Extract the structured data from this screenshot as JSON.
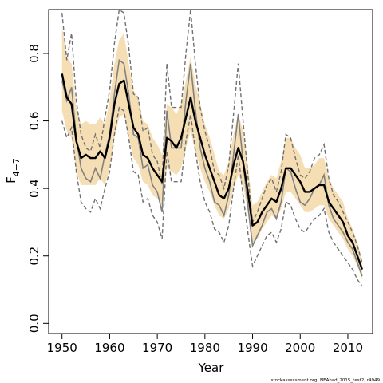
{
  "chart_data": {
    "type": "line",
    "xlabel": "Year",
    "ylabel": "F̄ 4−7",
    "ylabel_main": "F",
    "ylabel_sub": "4−7",
    "footer": "stockassessment.org, NEAhad_2015_test2, r4949",
    "xlim": [
      1947.2,
      2015.2
    ],
    "ylim": [
      -0.03,
      0.93
    ],
    "x_ticks": [
      1950,
      1960,
      1970,
      1980,
      1990,
      2000,
      2010
    ],
    "x_tick_labels": [
      "1950",
      "1960",
      "1970",
      "1980",
      "1990",
      "2000",
      "2010"
    ],
    "y_ticks": [
      0.0,
      0.2,
      0.4,
      0.6,
      0.8
    ],
    "y_tick_labels": [
      "0.0",
      "0.2",
      "0.4",
      "0.6",
      "0.8"
    ],
    "colors": {
      "band": "#f5deb3",
      "estimate": "#000000",
      "previous": "#808080",
      "previous_ci": "#707070"
    },
    "x": [
      1950,
      1951,
      1952,
      1953,
      1954,
      1955,
      1956,
      1957,
      1958,
      1959,
      1960,
      1961,
      1962,
      1963,
      1964,
      1965,
      1966,
      1967,
      1968,
      1969,
      1970,
      1971,
      1972,
      1973,
      1974,
      1975,
      1976,
      1977,
      1978,
      1979,
      1980,
      1981,
      1982,
      1983,
      1984,
      1985,
      1986,
      1987,
      1988,
      1989,
      1990,
      1991,
      1992,
      1993,
      1994,
      1995,
      1996,
      1997,
      1998,
      1999,
      2000,
      2001,
      2002,
      2003,
      2004,
      2005,
      2006,
      2007,
      2008,
      2009,
      2010,
      2011,
      2012,
      2013
    ],
    "series": [
      {
        "role": "estimate",
        "values": [
          0.74,
          0.67,
          0.65,
          0.54,
          0.49,
          0.5,
          0.49,
          0.49,
          0.51,
          0.49,
          0.55,
          0.65,
          0.71,
          0.72,
          0.65,
          0.58,
          0.56,
          0.5,
          0.49,
          0.46,
          0.44,
          0.42,
          0.55,
          0.54,
          0.52,
          0.55,
          0.61,
          0.67,
          0.6,
          0.55,
          0.5,
          0.46,
          0.42,
          0.38,
          0.37,
          0.4,
          0.47,
          0.52,
          0.48,
          0.39,
          0.29,
          0.3,
          0.33,
          0.35,
          0.37,
          0.36,
          0.4,
          0.46,
          0.46,
          0.44,
          0.42,
          0.39,
          0.39,
          0.4,
          0.41,
          0.41,
          0.36,
          0.34,
          0.32,
          0.3,
          0.26,
          0.24,
          0.2,
          0.16
        ],
        "lower": [
          0.63,
          0.57,
          0.55,
          0.45,
          0.41,
          0.41,
          0.41,
          0.41,
          0.43,
          0.41,
          0.46,
          0.55,
          0.61,
          0.62,
          0.55,
          0.49,
          0.47,
          0.42,
          0.41,
          0.38,
          0.37,
          0.35,
          0.46,
          0.45,
          0.44,
          0.46,
          0.52,
          0.57,
          0.51,
          0.46,
          0.42,
          0.39,
          0.35,
          0.32,
          0.31,
          0.34,
          0.4,
          0.44,
          0.41,
          0.33,
          0.24,
          0.25,
          0.28,
          0.3,
          0.32,
          0.31,
          0.34,
          0.39,
          0.39,
          0.37,
          0.35,
          0.33,
          0.33,
          0.34,
          0.35,
          0.35,
          0.31,
          0.29,
          0.27,
          0.25,
          0.22,
          0.2,
          0.17,
          0.13
        ],
        "upper": [
          0.88,
          0.79,
          0.77,
          0.64,
          0.59,
          0.6,
          0.59,
          0.59,
          0.61,
          0.59,
          0.66,
          0.77,
          0.84,
          0.86,
          0.77,
          0.69,
          0.67,
          0.6,
          0.59,
          0.55,
          0.53,
          0.5,
          0.65,
          0.64,
          0.62,
          0.65,
          0.72,
          0.79,
          0.71,
          0.65,
          0.59,
          0.55,
          0.5,
          0.45,
          0.44,
          0.48,
          0.56,
          0.62,
          0.57,
          0.47,
          0.35,
          0.36,
          0.39,
          0.42,
          0.44,
          0.43,
          0.48,
          0.55,
          0.55,
          0.52,
          0.5,
          0.46,
          0.46,
          0.47,
          0.49,
          0.49,
          0.43,
          0.4,
          0.38,
          0.36,
          0.31,
          0.28,
          0.24,
          0.19
        ]
      },
      {
        "role": "previous",
        "values": [
          0.72,
          0.66,
          0.7,
          0.55,
          0.46,
          0.43,
          0.42,
          0.46,
          0.43,
          0.5,
          0.56,
          0.68,
          0.78,
          0.77,
          0.68,
          0.56,
          0.55,
          0.46,
          0.47,
          0.41,
          0.39,
          0.33,
          0.63,
          0.52,
          0.52,
          0.52,
          0.66,
          0.77,
          0.63,
          0.52,
          0.46,
          0.42,
          0.36,
          0.35,
          0.32,
          0.38,
          0.5,
          0.62,
          0.48,
          0.35,
          0.23,
          0.26,
          0.29,
          0.33,
          0.34,
          0.31,
          0.36,
          0.46,
          0.45,
          0.4,
          0.36,
          0.35,
          0.37,
          0.4,
          0.41,
          0.44,
          0.35,
          0.31,
          0.29,
          0.27,
          0.24,
          0.22,
          0.18,
          0.14
        ],
        "lower": [
          0.6,
          0.55,
          0.58,
          0.45,
          0.36,
          0.34,
          0.33,
          0.37,
          0.34,
          0.4,
          0.45,
          0.56,
          0.64,
          0.63,
          0.55,
          0.45,
          0.44,
          0.36,
          0.37,
          0.32,
          0.3,
          0.25,
          0.51,
          0.42,
          0.42,
          0.42,
          0.54,
          0.62,
          0.51,
          0.42,
          0.36,
          0.33,
          0.28,
          0.27,
          0.24,
          0.29,
          0.4,
          0.5,
          0.38,
          0.27,
          0.17,
          0.2,
          0.23,
          0.26,
          0.27,
          0.24,
          0.28,
          0.36,
          0.35,
          0.31,
          0.28,
          0.27,
          0.29,
          0.31,
          0.32,
          0.34,
          0.27,
          0.24,
          0.22,
          0.2,
          0.18,
          0.16,
          0.13,
          0.11
        ],
        "upper": [
          0.92,
          0.78,
          0.86,
          0.66,
          0.56,
          0.52,
          0.51,
          0.56,
          0.52,
          0.61,
          0.69,
          0.83,
          0.93,
          0.92,
          0.82,
          0.68,
          0.67,
          0.57,
          0.58,
          0.5,
          0.48,
          0.41,
          0.77,
          0.64,
          0.64,
          0.64,
          0.8,
          0.93,
          0.77,
          0.64,
          0.57,
          0.52,
          0.45,
          0.44,
          0.4,
          0.47,
          0.62,
          0.77,
          0.6,
          0.44,
          0.3,
          0.33,
          0.37,
          0.41,
          0.43,
          0.39,
          0.45,
          0.56,
          0.55,
          0.49,
          0.44,
          0.43,
          0.45,
          0.49,
          0.5,
          0.53,
          0.43,
          0.38,
          0.36,
          0.33,
          0.3,
          0.27,
          0.23,
          0.18
        ]
      }
    ]
  }
}
